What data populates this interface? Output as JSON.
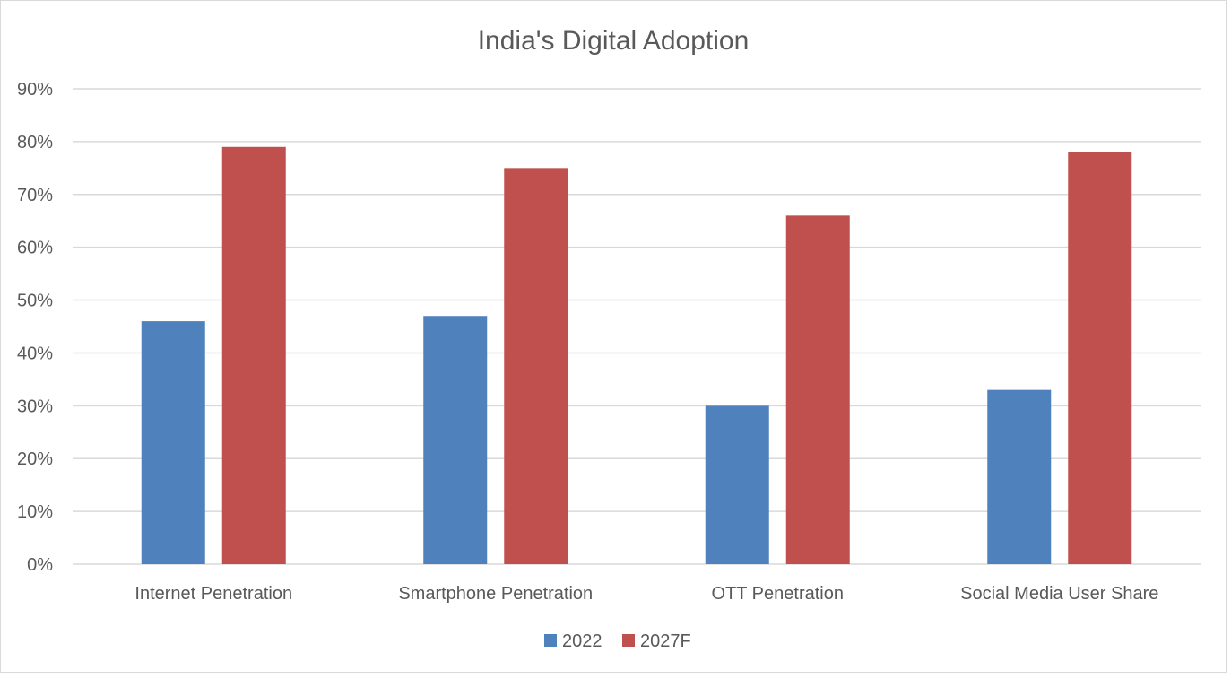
{
  "chart_data": {
    "type": "bar",
    "title": "India's Digital Adoption",
    "categories": [
      "Internet Penetration",
      "Smartphone Penetration",
      "OTT Penetration",
      "Social Media User Share"
    ],
    "series": [
      {
        "name": "2022",
        "values": [
          46,
          47,
          30,
          33
        ],
        "color": "#4f81bd"
      },
      {
        "name": "2027F",
        "values": [
          79,
          75,
          66,
          78
        ],
        "color": "#c0504d"
      }
    ],
    "ylim": [
      0,
      90
    ],
    "yticks": [
      "0%",
      "10%",
      "20%",
      "30%",
      "40%",
      "50%",
      "60%",
      "70%",
      "80%",
      "90%"
    ],
    "grid": true,
    "legend": "bottom"
  }
}
